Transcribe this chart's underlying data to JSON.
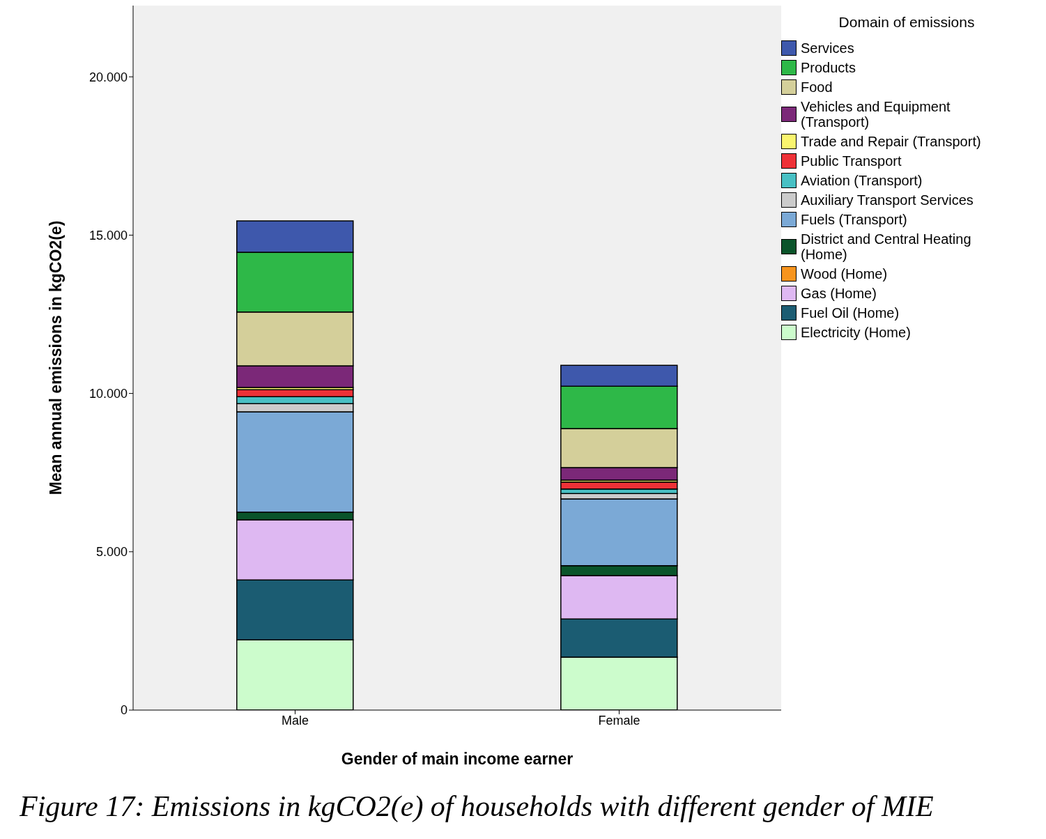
{
  "chart_data": {
    "type": "bar",
    "stacked": true,
    "xlabel": "Gender of main income earner",
    "ylabel": "Mean annual emissions in kgCO2(e)",
    "legend_title": "Domain of emissions",
    "legend": "right",
    "grid": false,
    "categories": [
      "Male",
      "Female"
    ],
    "ylim": [
      0,
      22250
    ],
    "yticks": [
      0,
      {
        "value": 5000,
        "label": "5.000"
      },
      {
        "value": 10000,
        "label": "10.000"
      },
      {
        "value": 15000,
        "label": "15.000"
      },
      {
        "value": 20000,
        "label": "20.000"
      }
    ],
    "series": [
      {
        "name": "Electricity (Home)",
        "color": "#ccfccc",
        "values": [
          2220,
          1670
        ]
      },
      {
        "name": "Fuel Oil (Home)",
        "color": "#1b5c72",
        "values": [
          1890,
          1210
        ]
      },
      {
        "name": "Gas (Home)",
        "color": "#deb8f2",
        "values": [
          1900,
          1370
        ]
      },
      {
        "name": "Wood (Home)",
        "color": "#f7941d",
        "values": [
          null,
          null
        ]
      },
      {
        "name": "District and Central Heating (Home)",
        "color": "#0a542a",
        "values": [
          240,
          310
        ]
      },
      {
        "name": "Fuels (Transport)",
        "color": "#7ba9d6",
        "values": [
          3170,
          2110
        ]
      },
      {
        "name": "Auxiliary Transport Services",
        "color": "#cbcbcb",
        "values": [
          260,
          170
        ]
      },
      {
        "name": "Aviation (Transport)",
        "color": "#48c0c4",
        "values": [
          220,
          140
        ]
      },
      {
        "name": "Public Transport",
        "color": "#ee3137",
        "values": [
          220,
          220
        ]
      },
      {
        "name": "Trade and Repair (Transport)",
        "color": "#faf56e",
        "values": [
          70,
          60
        ]
      },
      {
        "name": "Vehicles and Equipment (Transport)",
        "color": "#7b2878",
        "values": [
          680,
          400
        ]
      },
      {
        "name": "Food",
        "color": "#d4cf9a",
        "values": [
          1700,
          1230
        ]
      },
      {
        "name": "Products",
        "color": "#2eb848",
        "values": [
          1890,
          1340
        ]
      },
      {
        "name": "Services",
        "color": "#3e58ac",
        "values": [
          990,
          660
        ]
      }
    ],
    "annotations": [
      "Figure 17: Emissions in kgCO2(e) of households with different gender of MIE"
    ]
  }
}
